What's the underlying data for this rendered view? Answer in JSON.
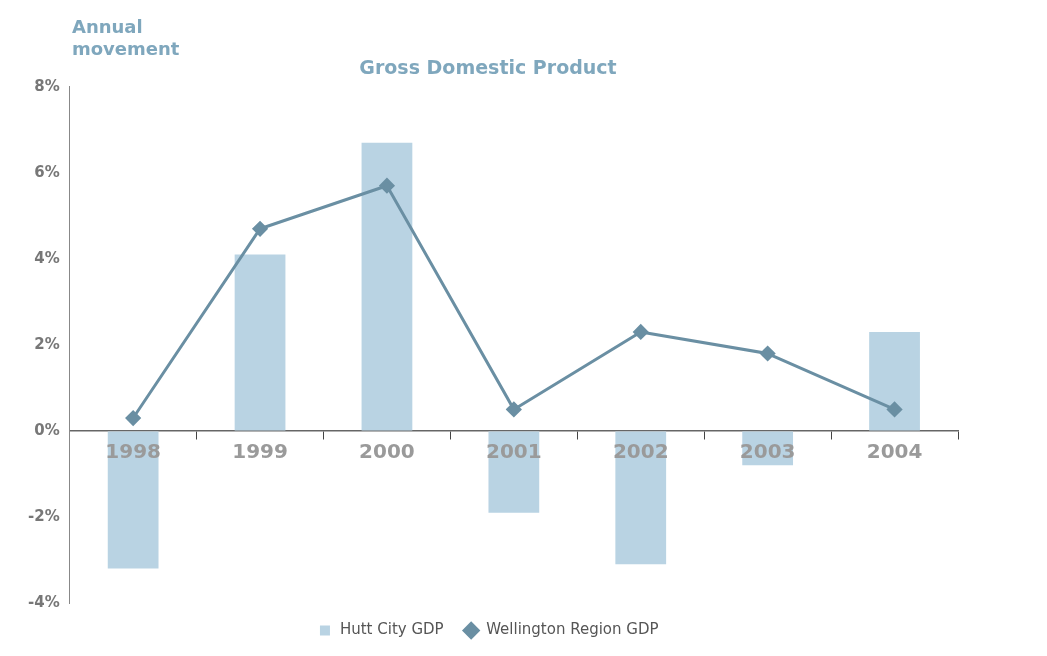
{
  "chart_data": {
    "type": "bar",
    "title": "Gross Domestic Product",
    "ylabel": "Annual movement",
    "categories": [
      "1998",
      "1999",
      "2000",
      "2001",
      "2002",
      "2003",
      "2004"
    ],
    "series": [
      {
        "name": "Hutt City GDP",
        "color": "#b9d3e3",
        "values": [
          -3.2,
          4.1,
          6.7,
          -1.9,
          -3.1,
          -0.8,
          2.3
        ]
      },
      {
        "name": "Wellington Region GDP",
        "type": "line",
        "color": "#6a8fa3",
        "values": [
          0.3,
          4.7,
          5.7,
          0.5,
          2.3,
          1.8,
          0.5
        ]
      }
    ],
    "ylim": [
      -4,
      8
    ],
    "yticks": [
      {
        "value": -4,
        "label": "-4%"
      },
      {
        "value": -2,
        "label": "-2%"
      },
      {
        "value": 0,
        "label": "0%"
      },
      {
        "value": 2,
        "label": "2%"
      },
      {
        "value": 4,
        "label": "4%"
      },
      {
        "value": 6,
        "label": "6%"
      },
      {
        "value": 8,
        "label": "8%"
      }
    ],
    "grid": false,
    "legend": "bottom",
    "marker": "diamond",
    "line_style": "solid"
  }
}
